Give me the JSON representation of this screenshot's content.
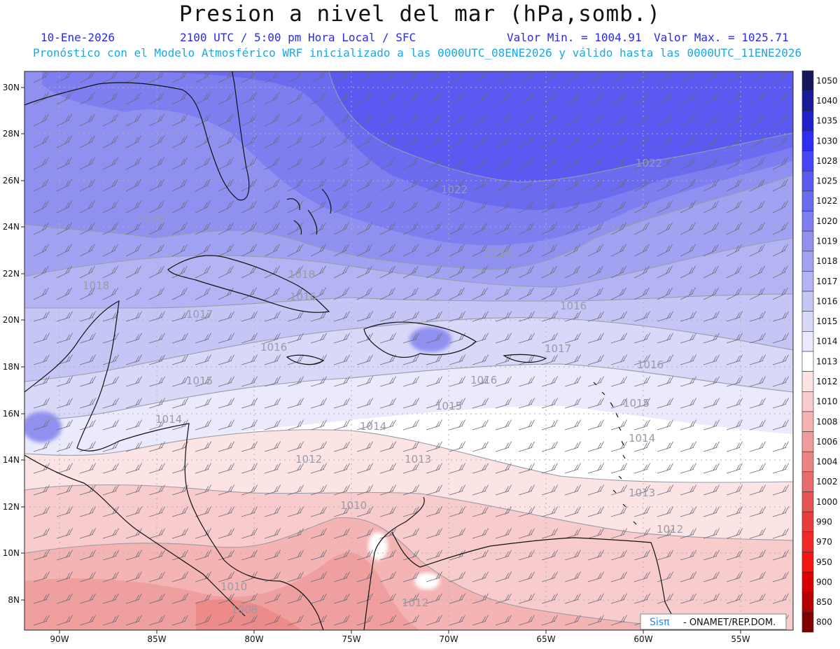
{
  "header": {
    "title": "Presion a nivel del mar (hPa,somb.)",
    "date": "10-Ene-2026",
    "time": "2100 UTC / 5:00 pm Hora Local / SFC",
    "min": "Valor Min. = 1004.91",
    "max": "Valor Max. = 1025.71",
    "forecast": "Pronóstico con el Modelo Atmosférico WRF inicializado a las 0000UTC_08ENE2026 y válido hasta las  0000UTC_11ENE2026"
  },
  "map": {
    "lat_labels": [
      "30N",
      "28N",
      "26N",
      "24N",
      "22N",
      "20N",
      "18N",
      "16N",
      "14N",
      "12N",
      "10N",
      "8N"
    ],
    "lon_labels": [
      "90W",
      "85W",
      "80W",
      "75W",
      "70W",
      "65W",
      "60W",
      "55W"
    ],
    "contour_labels": [
      "1022",
      "1022",
      "1020",
      "1019",
      "1018",
      "1018",
      "1017",
      "1016",
      "1016",
      "1016",
      "1016",
      "1016",
      "1015",
      "1015",
      "1015",
      "1014",
      "1014",
      "1014",
      "1013",
      "1013",
      "1012",
      "1012",
      "1010",
      "1010",
      "1012",
      "1008",
      "1017"
    ],
    "credit_brand": "Sisπ",
    "credit_text": "- ONAMET/REP.DOM."
  },
  "colorbar": {
    "levels": [
      "1050",
      "1040",
      "1035",
      "1030",
      "1028",
      "1025",
      "1022",
      "1020",
      "1019",
      "1018",
      "1017",
      "1016",
      "1015",
      "1014",
      "1013",
      "1012",
      "1010",
      "1008",
      "1006",
      "1004",
      "1002",
      "1000",
      "990",
      "970",
      "950",
      "900",
      "850",
      "800"
    ],
    "colors": [
      "#16165a",
      "#1a1a96",
      "#2020c8",
      "#2e2ef0",
      "#4646f8",
      "#5a5af2",
      "#6b6bf0",
      "#7e7ef0",
      "#9090f0",
      "#a2a2f2",
      "#b4b4f4",
      "#c6c6f6",
      "#d8d8f8",
      "#eaeafc",
      "#ffffff",
      "#fde4e4",
      "#f8cccc",
      "#f4b4b4",
      "#f09c9c",
      "#ec8484",
      "#e86c6c",
      "#e45454",
      "#e83c3c",
      "#f02828",
      "#f41414",
      "#d80000",
      "#b40000",
      "#800000"
    ]
  }
}
